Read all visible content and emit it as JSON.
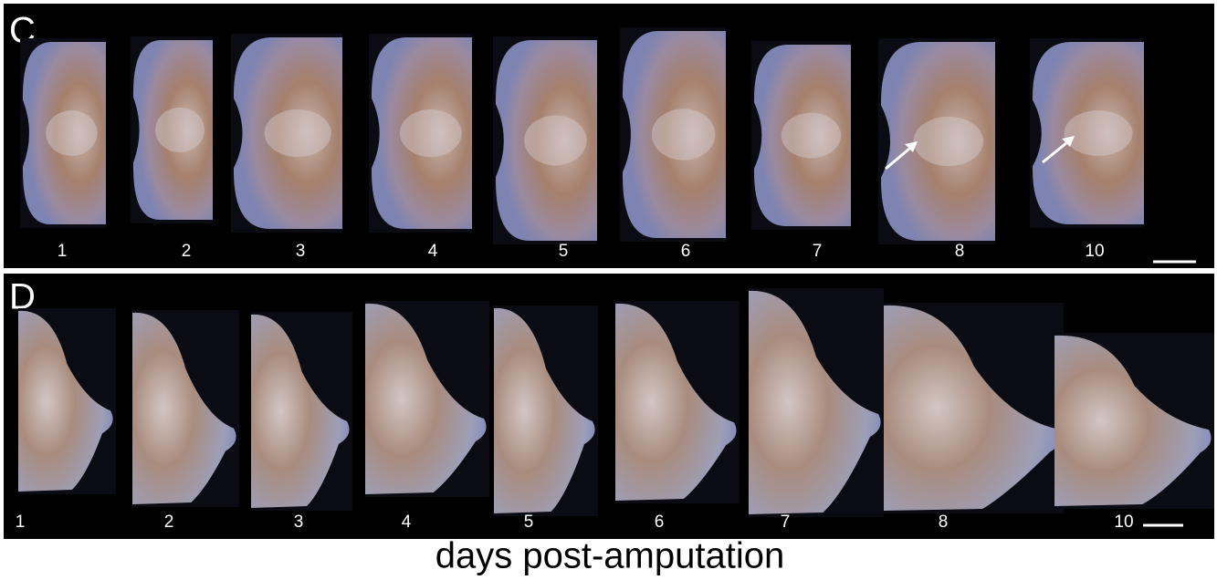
{
  "panels": [
    {
      "label": "C",
      "days": [
        "1",
        "2",
        "3",
        "4",
        "5",
        "6",
        "7",
        "8",
        "10"
      ]
    },
    {
      "label": "D",
      "days": [
        "1",
        "2",
        "3",
        "4",
        "5",
        "6",
        "7",
        "8",
        "10"
      ]
    }
  ],
  "caption": "days post-amputation"
}
